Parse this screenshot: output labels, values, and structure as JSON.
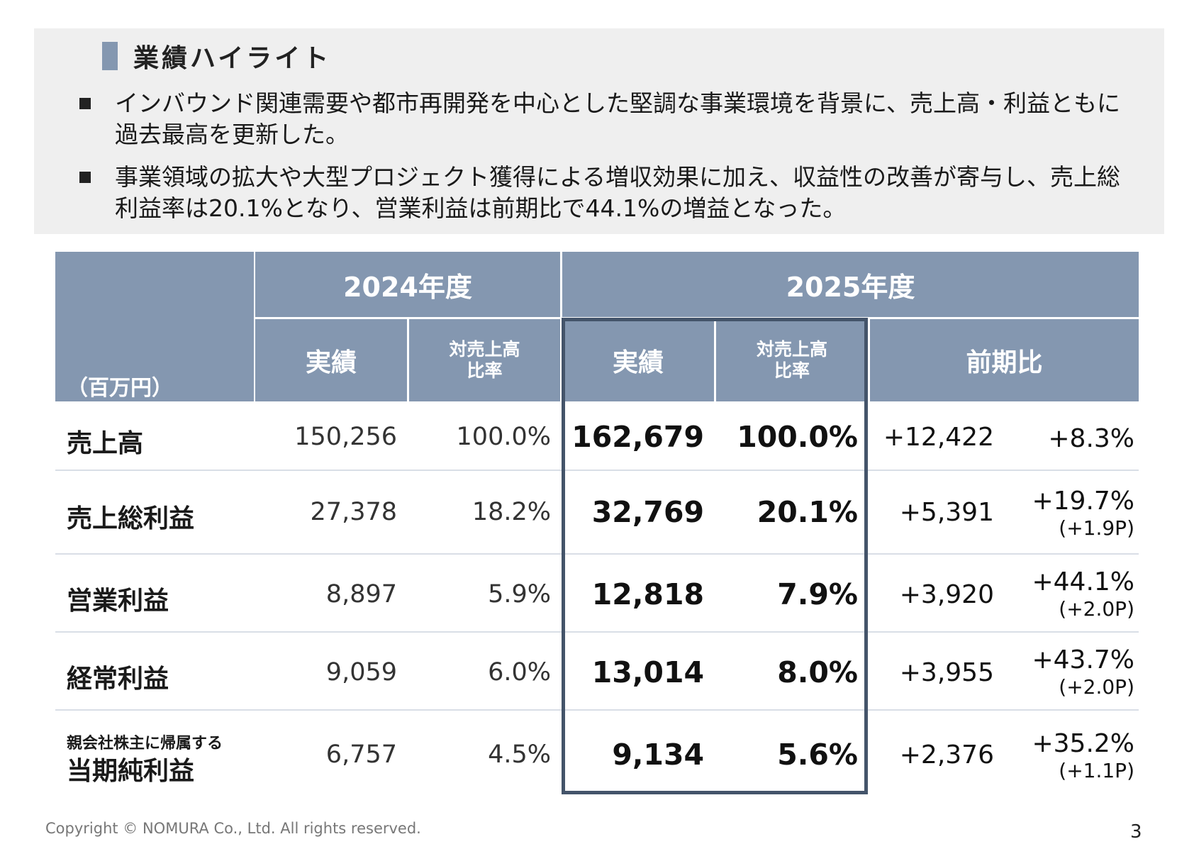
{
  "section_title": "業績ハイライト",
  "bullets": [
    "インバウンド関連需要や都市再開発を中心とした堅調な事業環境を背景に、売上高・利益ともに過去最高を更新した。",
    "事業領域の拡大や大型プロジェクト獲得による増収効果に加え、収益性の改善が寄与し、売上総利益率は20.1%となり、営業利益は前期比で44.1%の増益となった。"
  ],
  "table": {
    "unit": "（百万円）",
    "fy2024": "2024年度",
    "fy2025": "2025年度",
    "col_actual": "実績",
    "col_ratio_l1": "対売上高",
    "col_ratio_l2": "比率",
    "col_yoy": "前期比",
    "rows": [
      {
        "label": "売上高",
        "sublabel": "",
        "a24": "150,256",
        "r24": "100.0%",
        "a25": "162,679",
        "r25": "100.0%",
        "diff": "+12,422",
        "pct": "+8.3%",
        "pp": ""
      },
      {
        "label": "売上総利益",
        "sublabel": "",
        "a24": "27,378",
        "r24": "18.2%",
        "a25": "32,769",
        "r25": "20.1%",
        "diff": "+5,391",
        "pct": "+19.7%",
        "pp": "(+1.9P)"
      },
      {
        "label": "営業利益",
        "sublabel": "",
        "a24": "8,897",
        "r24": "5.9%",
        "a25": "12,818",
        "r25": "7.9%",
        "diff": "+3,920",
        "pct": "+44.1%",
        "pp": "(+2.0P)"
      },
      {
        "label": "経常利益",
        "sublabel": "",
        "a24": "9,059",
        "r24": "6.0%",
        "a25": "13,014",
        "r25": "8.0%",
        "diff": "+3,955",
        "pct": "+43.7%",
        "pp": "(+2.0P)"
      },
      {
        "label": "当期純利益",
        "sublabel": "親会社株主に帰属する",
        "a24": "6,757",
        "r24": "4.5%",
        "a25": "9,134",
        "r25": "5.6%",
        "diff": "+2,376",
        "pct": "+35.2%",
        "pp": "(+1.1P)"
      }
    ]
  },
  "footer": {
    "copyright": "Copyright © NOMURA Co., Ltd. All rights reserved.",
    "page_number": "3"
  },
  "colors": {
    "header_bg": "#8497b0",
    "frame": "#44546a",
    "highlight_bg": "#efefef"
  }
}
